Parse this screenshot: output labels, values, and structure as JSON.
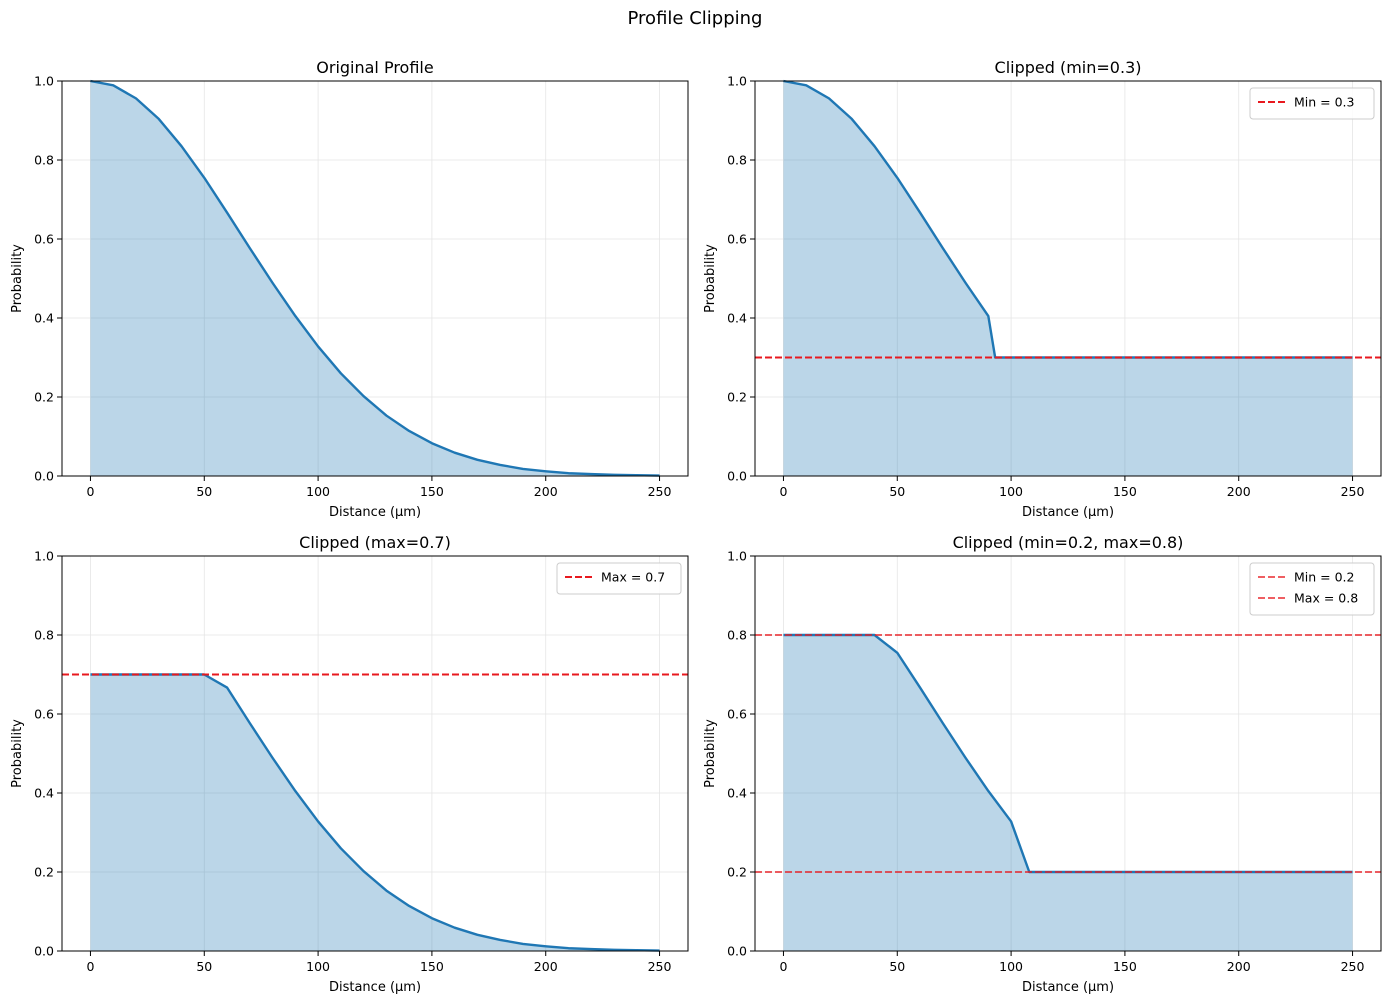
{
  "figure": {
    "title": "Profile Clipping"
  },
  "colors": {
    "line": "#1f77b4",
    "fill": "#1f77b4",
    "threshold": "#e8191f",
    "grid": "#e5e5e5"
  },
  "chart_data": [
    {
      "type": "area",
      "title": "Original Profile",
      "xlabel": "Distance (μm)",
      "ylabel": "Probability",
      "xlim": [
        -12.5,
        262.5
      ],
      "ylim": [
        0,
        1
      ],
      "xticks": [
        0,
        50,
        100,
        150,
        200,
        250
      ],
      "yticks": [
        0.0,
        0.2,
        0.4,
        0.6,
        0.8,
        1.0
      ],
      "grid": true,
      "series": [
        {
          "x": [
            0,
            10,
            20,
            30,
            40,
            50,
            60,
            70,
            80,
            90,
            100,
            110,
            120,
            130,
            140,
            150,
            160,
            170,
            180,
            190,
            200,
            210,
            220,
            230,
            240,
            250
          ],
          "y": [
            1.0,
            0.989,
            0.956,
            0.904,
            0.835,
            0.755,
            0.667,
            0.577,
            0.489,
            0.405,
            0.328,
            0.26,
            0.202,
            0.153,
            0.114,
            0.083,
            0.059,
            0.041,
            0.028,
            0.018,
            0.012,
            0.007,
            0.005,
            0.003,
            0.002,
            0.001
          ]
        }
      ],
      "thresholds": [],
      "legend": null
    },
    {
      "type": "area",
      "title": "Clipped (min=0.3)",
      "xlabel": "Distance (μm)",
      "ylabel": "Probability",
      "xlim": [
        -12.5,
        262.5
      ],
      "ylim": [
        0,
        1
      ],
      "xticks": [
        0,
        50,
        100,
        150,
        200,
        250
      ],
      "yticks": [
        0.0,
        0.2,
        0.4,
        0.6,
        0.8,
        1.0
      ],
      "grid": true,
      "series": [
        {
          "x": [
            0,
            10,
            20,
            30,
            40,
            50,
            60,
            70,
            80,
            90,
            93,
            100,
            150,
            200,
            250
          ],
          "y": [
            1.0,
            0.989,
            0.956,
            0.904,
            0.835,
            0.755,
            0.667,
            0.577,
            0.489,
            0.405,
            0.3,
            0.3,
            0.3,
            0.3,
            0.3
          ]
        }
      ],
      "thresholds": [
        {
          "value": 0.3,
          "label": "Min = 0.3",
          "alpha": 1.0
        }
      ],
      "legend": "top-right"
    },
    {
      "type": "area",
      "title": "Clipped (max=0.7)",
      "xlabel": "Distance (μm)",
      "ylabel": "Probability",
      "xlim": [
        -12.5,
        262.5
      ],
      "ylim": [
        0,
        1
      ],
      "xticks": [
        0,
        50,
        100,
        150,
        200,
        250
      ],
      "yticks": [
        0.0,
        0.2,
        0.4,
        0.6,
        0.8,
        1.0
      ],
      "grid": true,
      "series": [
        {
          "x": [
            0,
            50,
            60,
            70,
            80,
            90,
            100,
            110,
            120,
            130,
            140,
            150,
            160,
            170,
            180,
            190,
            200,
            210,
            220,
            230,
            240,
            250
          ],
          "y": [
            0.7,
            0.7,
            0.667,
            0.577,
            0.489,
            0.405,
            0.328,
            0.26,
            0.202,
            0.153,
            0.114,
            0.083,
            0.059,
            0.041,
            0.028,
            0.018,
            0.012,
            0.007,
            0.005,
            0.003,
            0.002,
            0.001
          ]
        }
      ],
      "thresholds": [
        {
          "value": 0.7,
          "label": "Max = 0.7",
          "alpha": 1.0
        }
      ],
      "legend": "top-right"
    },
    {
      "type": "area",
      "title": "Clipped (min=0.2, max=0.8)",
      "xlabel": "Distance (μm)",
      "ylabel": "Probability",
      "xlim": [
        -12.5,
        262.5
      ],
      "ylim": [
        0,
        1
      ],
      "xticks": [
        0,
        50,
        100,
        150,
        200,
        250
      ],
      "yticks": [
        0.0,
        0.2,
        0.4,
        0.6,
        0.8,
        1.0
      ],
      "grid": true,
      "series": [
        {
          "x": [
            0,
            40,
            50,
            60,
            70,
            80,
            90,
            100,
            108,
            150,
            200,
            250
          ],
          "y": [
            0.8,
            0.8,
            0.755,
            0.667,
            0.577,
            0.489,
            0.405,
            0.328,
            0.2,
            0.2,
            0.2,
            0.2
          ]
        }
      ],
      "thresholds": [
        {
          "value": 0.2,
          "label": "Min = 0.2",
          "alpha": 0.7
        },
        {
          "value": 0.8,
          "label": "Max = 0.8",
          "alpha": 0.7
        }
      ],
      "legend": "top-right"
    }
  ]
}
